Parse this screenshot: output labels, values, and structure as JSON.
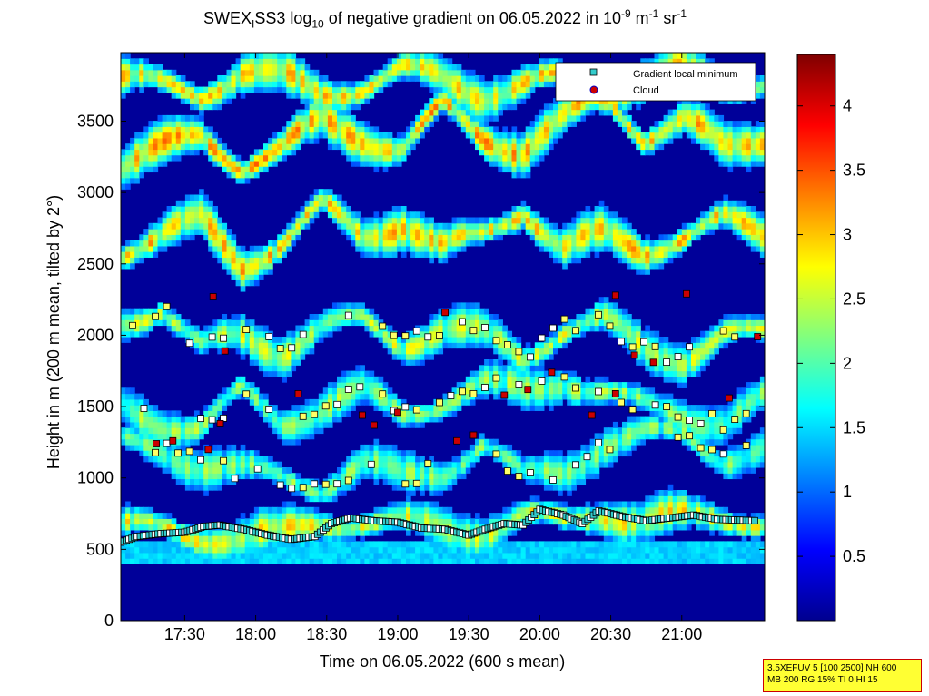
{
  "chart_data": {
    "type": "heatmap",
    "title_parts": {
      "p1": "SWEX",
      "sub1": "I",
      "p2": "SS3 log",
      "sub2": "10",
      "p3": " of negative gradient on 06.05.2022 in 10",
      "sup1": "-9",
      "p4": " m",
      "sup2": "-1",
      "p5": " sr",
      "sup3": "-1"
    },
    "xlabel": "Time on 06.05.2022 (600 s mean)",
    "ylabel": "Height in m (200 m mean, tilted by 2°)",
    "x_ticks": [
      "17:30",
      "18:00",
      "18:30",
      "19:00",
      "19:30",
      "20:00",
      "20:30",
      "21:00"
    ],
    "x_tick_minutes": [
      1050,
      1080,
      1110,
      1140,
      1170,
      1200,
      1230,
      1260
    ],
    "xlim_minutes": [
      1023,
      1295
    ],
    "y_ticks": [
      0,
      500,
      1000,
      1500,
      2000,
      2500,
      3000,
      3500
    ],
    "ylim": [
      0,
      3980
    ],
    "colorbar": {
      "ticks": [
        0.5,
        1,
        1.5,
        2,
        2.5,
        3,
        3.5,
        4
      ],
      "tick_labels": [
        "0.5",
        "1",
        "1.5",
        "2",
        "2.5",
        "3",
        "3.5",
        "4"
      ],
      "range": [
        0,
        4.4
      ],
      "colormap": "jet"
    },
    "legend": {
      "position": "top-right",
      "entries": [
        {
          "label": "Gradient local minimum",
          "marker": "square",
          "color": "#33cccc"
        },
        {
          "label": "Cloud",
          "marker": "circle",
          "color": "#cc0000",
          "edge": "#0000cc"
        }
      ]
    },
    "layers": [
      {
        "name": "band-lower",
        "heights": [
          660,
          640,
          600,
          580,
          600,
          700,
          700,
          680,
          650,
          640,
          720,
          690,
          770,
          700,
          720,
          730,
          700
        ],
        "value": 2.6
      },
      {
        "name": "band-1000",
        "heights": [
          1240,
          1200,
          1100,
          1050,
          1000,
          950,
          1100,
          1000,
          1050,
          1250,
          1000,
          1050,
          1250,
          1300,
          1300,
          1150,
          1200
        ],
        "value": 2.1
      },
      {
        "name": "band-1500",
        "heights": [
          1500,
          1400,
          1350,
          1600,
          1400,
          1500,
          1600,
          1450,
          1550,
          1650,
          1600,
          1700,
          1600,
          1500,
          1450,
          1400,
          1550
        ],
        "value": 2.2
      },
      {
        "name": "band-2000",
        "heights": [
          2100,
          2200,
          1900,
          2000,
          1900,
          2050,
          2100,
          1950,
          2050,
          2000,
          1850,
          2050,
          2100,
          1900,
          1850,
          2000,
          2000
        ],
        "value": 2.4
      },
      {
        "name": "band-2700",
        "heights": [
          2600,
          2700,
          2800,
          2500,
          2650,
          2900,
          2700,
          2800,
          2600,
          2700,
          2900,
          2600,
          2700,
          2600,
          2700,
          2800,
          2700
        ],
        "value": 2.8
      },
      {
        "name": "band-3300",
        "heights": [
          3200,
          3300,
          3400,
          3200,
          3300,
          3500,
          3400,
          3300,
          3600,
          3400,
          3300,
          3500,
          3700,
          3400,
          3500,
          3300,
          3400
        ],
        "value": 2.9
      },
      {
        "name": "band-3800",
        "heights": [
          3800,
          3750,
          3700,
          3850,
          3800,
          3700,
          3750,
          3850,
          3800,
          3700,
          3750,
          3800,
          3700,
          3800,
          3850,
          3750,
          3800
        ],
        "value": 2.7
      }
    ],
    "gradient_minimum_series": [
      {
        "t": 1023,
        "h": 550
      },
      {
        "t": 1030,
        "h": 590
      },
      {
        "t": 1040,
        "h": 610
      },
      {
        "t": 1050,
        "h": 620
      },
      {
        "t": 1058,
        "h": 660
      },
      {
        "t": 1065,
        "h": 670
      },
      {
        "t": 1075,
        "h": 640
      },
      {
        "t": 1085,
        "h": 600
      },
      {
        "t": 1095,
        "h": 570
      },
      {
        "t": 1105,
        "h": 590
      },
      {
        "t": 1112,
        "h": 680
      },
      {
        "t": 1120,
        "h": 720
      },
      {
        "t": 1130,
        "h": 700
      },
      {
        "t": 1140,
        "h": 690
      },
      {
        "t": 1150,
        "h": 650
      },
      {
        "t": 1160,
        "h": 640
      },
      {
        "t": 1170,
        "h": 600
      },
      {
        "t": 1177,
        "h": 640
      },
      {
        "t": 1185,
        "h": 680
      },
      {
        "t": 1193,
        "h": 670
      },
      {
        "t": 1200,
        "h": 780
      },
      {
        "t": 1210,
        "h": 740
      },
      {
        "t": 1218,
        "h": 680
      },
      {
        "t": 1225,
        "h": 770
      },
      {
        "t": 1235,
        "h": 730
      },
      {
        "t": 1245,
        "h": 700
      },
      {
        "t": 1255,
        "h": 720
      },
      {
        "t": 1265,
        "h": 740
      },
      {
        "t": 1275,
        "h": 710
      },
      {
        "t": 1292,
        "h": 700
      }
    ],
    "cloud_series": [
      {
        "t": 1038,
        "h": 1240
      },
      {
        "t": 1045,
        "h": 1260
      },
      {
        "t": 1060,
        "h": 1200
      },
      {
        "t": 1065,
        "h": 1380
      },
      {
        "t": 1062,
        "h": 2270
      },
      {
        "t": 1067,
        "h": 1890
      },
      {
        "t": 1098,
        "h": 1590
      },
      {
        "t": 1125,
        "h": 1440
      },
      {
        "t": 1130,
        "h": 1370
      },
      {
        "t": 1140,
        "h": 1460
      },
      {
        "t": 1160,
        "h": 2160
      },
      {
        "t": 1165,
        "h": 1260
      },
      {
        "t": 1172,
        "h": 1300
      },
      {
        "t": 1185,
        "h": 1580
      },
      {
        "t": 1195,
        "h": 1620
      },
      {
        "t": 1205,
        "h": 1740
      },
      {
        "t": 1222,
        "h": 1440
      },
      {
        "t": 1232,
        "h": 1590
      },
      {
        "t": 1232,
        "h": 2280
      },
      {
        "t": 1240,
        "h": 1860
      },
      {
        "t": 1248,
        "h": 1810
      },
      {
        "t": 1262,
        "h": 2290
      },
      {
        "t": 1280,
        "h": 1560
      },
      {
        "t": 1292,
        "h": 1990
      }
    ]
  },
  "info_box": {
    "line1": "3.5XEFUV 5 [100 2500] NH 600",
    "line2": "MB 200 RG 15% TI 0 HI 15"
  }
}
